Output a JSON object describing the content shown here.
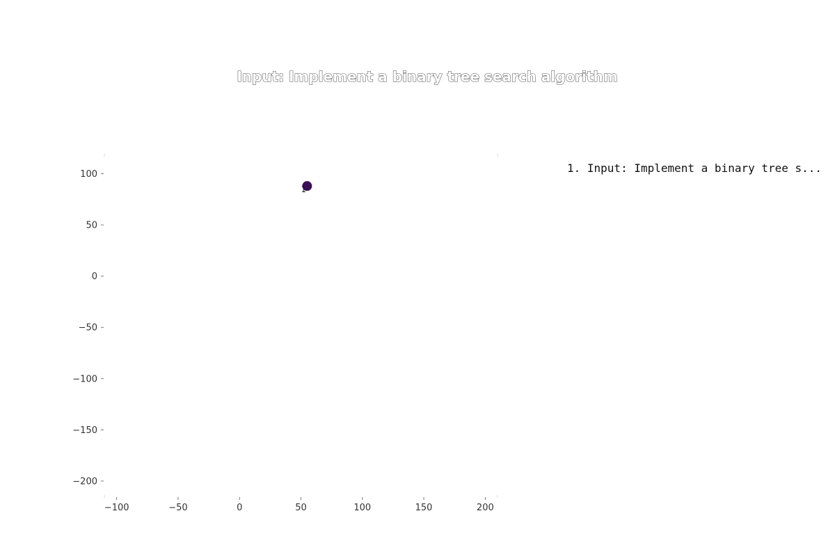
{
  "chart_data": {
    "type": "scatter",
    "title": "Input: Implement a binary tree search algorithm",
    "xlabel": "",
    "ylabel": "",
    "xlim": [
      -110,
      210
    ],
    "ylim": [
      -215,
      118
    ],
    "x_ticks": [
      -100,
      -50,
      0,
      50,
      100,
      150,
      200
    ],
    "y_ticks": [
      100,
      50,
      0,
      -50,
      -100,
      -150,
      -200
    ],
    "x_tick_labels": [
      "−100",
      "−50",
      "0",
      "50",
      "100",
      "150",
      "200"
    ],
    "y_tick_labels": [
      "100",
      "50",
      "0",
      "−50",
      "−100",
      "−150",
      "−200"
    ],
    "grid": false,
    "series": [
      {
        "points": [
          {
            "x": 55,
            "y": 88,
            "label": "1"
          }
        ]
      }
    ],
    "colors": {
      "point": "#3b0f57"
    },
    "annotations": [
      "1. Input: Implement a binary tree s..."
    ]
  }
}
